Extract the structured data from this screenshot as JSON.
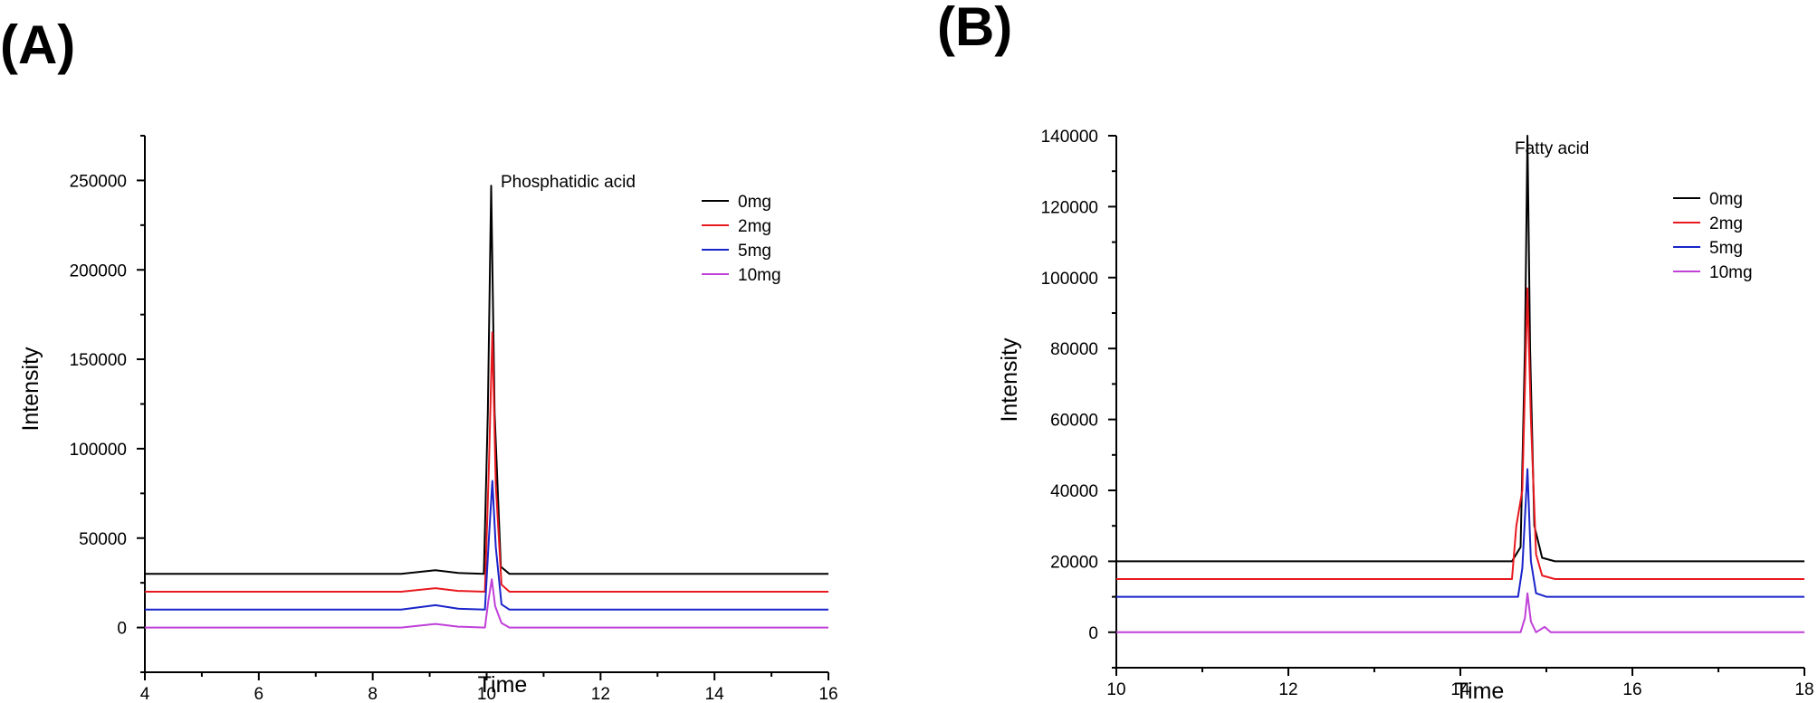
{
  "chart_data": [
    {
      "panel_label": "(A)",
      "type": "line",
      "xlabel": "Time",
      "ylabel": "Intensity",
      "annotation": "Phosphatidic acid",
      "xlim": [
        4,
        16
      ],
      "ylim": [
        -25000,
        275000
      ],
      "xticks": [
        4,
        6,
        8,
        10,
        12,
        14,
        16
      ],
      "yticks": [
        0,
        50000,
        100000,
        150000,
        200000,
        250000
      ],
      "legend_position": "top-right",
      "series": [
        {
          "name": "0mg",
          "color": "#000000",
          "points": [
            [
              4,
              30000
            ],
            [
              8.5,
              30000
            ],
            [
              9.1,
              32000
            ],
            [
              9.5,
              30500
            ],
            [
              9.95,
              30000
            ],
            [
              10.02,
              120000
            ],
            [
              10.08,
              247000
            ],
            [
              10.14,
              120000
            ],
            [
              10.25,
              34000
            ],
            [
              10.4,
              30000
            ],
            [
              16,
              30000
            ]
          ]
        },
        {
          "name": "2mg",
          "color": "#e8191f",
          "points": [
            [
              4,
              20000
            ],
            [
              8.5,
              20000
            ],
            [
              9.1,
              22000
            ],
            [
              9.5,
              20500
            ],
            [
              9.97,
              20000
            ],
            [
              10.04,
              90000
            ],
            [
              10.1,
              165000
            ],
            [
              10.16,
              80000
            ],
            [
              10.26,
              24000
            ],
            [
              10.4,
              20000
            ],
            [
              16,
              20000
            ]
          ]
        },
        {
          "name": "5mg",
          "color": "#1a24c9",
          "points": [
            [
              4,
              10000
            ],
            [
              8.5,
              10000
            ],
            [
              9.1,
              12500
            ],
            [
              9.5,
              10500
            ],
            [
              9.97,
              10000
            ],
            [
              10.04,
              50000
            ],
            [
              10.1,
              82000
            ],
            [
              10.16,
              45000
            ],
            [
              10.26,
              13000
            ],
            [
              10.4,
              10000
            ],
            [
              16,
              10000
            ]
          ]
        },
        {
          "name": "10mg",
          "color": "#c040d8",
          "points": [
            [
              4,
              0
            ],
            [
              8.5,
              0
            ],
            [
              9.1,
              2000
            ],
            [
              9.5,
              500
            ],
            [
              9.97,
              0
            ],
            [
              10.03,
              15000
            ],
            [
              10.09,
              27000
            ],
            [
              10.15,
              12000
            ],
            [
              10.26,
              2500
            ],
            [
              10.4,
              0
            ],
            [
              16,
              0
            ]
          ]
        }
      ]
    },
    {
      "panel_label": "(B)",
      "type": "line",
      "xlabel": "Time",
      "ylabel": "Intensity",
      "annotation": "Fatty acid",
      "xlim": [
        10,
        18
      ],
      "ylim": [
        -10000,
        140000
      ],
      "xticks": [
        10,
        12,
        14,
        16,
        18
      ],
      "yticks": [
        0,
        20000,
        40000,
        60000,
        80000,
        100000,
        120000,
        140000
      ],
      "legend_position": "top-right",
      "series": [
        {
          "name": "0mg",
          "color": "#000000",
          "points": [
            [
              10,
              20000
            ],
            [
              14.6,
              20000
            ],
            [
              14.7,
              24000
            ],
            [
              14.75,
              80000
            ],
            [
              14.78,
              140000
            ],
            [
              14.81,
              80000
            ],
            [
              14.86,
              30000
            ],
            [
              14.95,
              21000
            ],
            [
              15.1,
              20000
            ],
            [
              18,
              20000
            ]
          ]
        },
        {
          "name": "2mg",
          "color": "#e8191f",
          "points": [
            [
              10,
              15000
            ],
            [
              14.6,
              15000
            ],
            [
              14.65,
              30000
            ],
            [
              14.72,
              40000
            ],
            [
              14.78,
              97000
            ],
            [
              14.82,
              60000
            ],
            [
              14.88,
              22000
            ],
            [
              14.95,
              16000
            ],
            [
              15.1,
              15000
            ],
            [
              18,
              15000
            ]
          ]
        },
        {
          "name": "5mg",
          "color": "#1a24c9",
          "points": [
            [
              10,
              10000
            ],
            [
              14.67,
              10000
            ],
            [
              14.72,
              18000
            ],
            [
              14.78,
              46000
            ],
            [
              14.82,
              20000
            ],
            [
              14.88,
              11000
            ],
            [
              15.0,
              10000
            ],
            [
              18,
              10000
            ]
          ]
        },
        {
          "name": "10mg",
          "color": "#c040d8",
          "points": [
            [
              10,
              0
            ],
            [
              14.7,
              0
            ],
            [
              14.75,
              4000
            ],
            [
              14.78,
              11000
            ],
            [
              14.82,
              3000
            ],
            [
              14.88,
              0
            ],
            [
              14.98,
              1500
            ],
            [
              15.05,
              0
            ],
            [
              18,
              0
            ]
          ]
        }
      ]
    }
  ]
}
